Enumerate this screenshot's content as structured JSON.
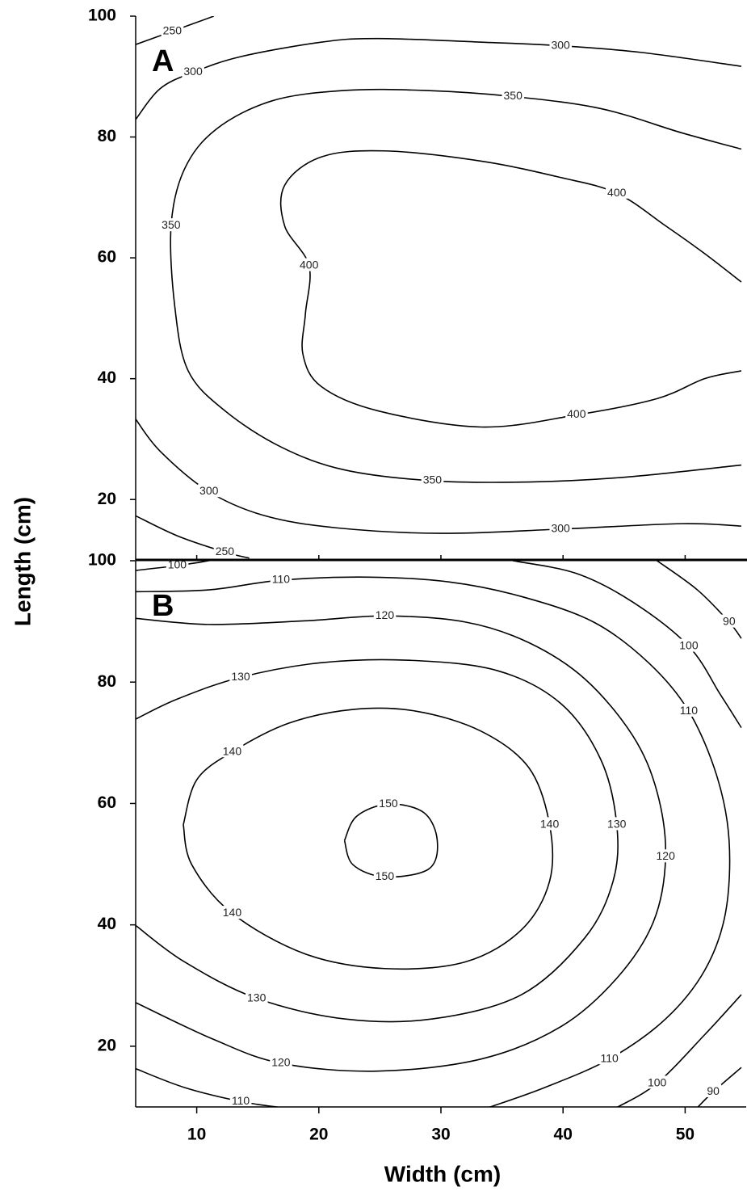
{
  "chart_data": [
    {
      "type": "contour",
      "label": "A",
      "ylabel": "Length (cm)",
      "xlim": [
        5,
        55
      ],
      "ylim": [
        10,
        100
      ],
      "yticks": [
        20,
        40,
        60,
        80,
        100
      ],
      "contours": [
        {
          "level": 250,
          "x": [
            5,
            8,
            11.4
          ],
          "y": [
            95.3,
            97.5,
            100
          ]
        },
        {
          "level": 300,
          "x": [
            5,
            7.0,
            9.7,
            13.6,
            20.2,
            24.8,
            33.3,
            39.8,
            46.4,
            54.6
          ],
          "y": [
            82.9,
            88,
            90.7,
            93.3,
            95.7,
            96.3,
            95.7,
            95.1,
            94,
            91.7
          ]
        },
        {
          "level": 350,
          "x": [
            54.6,
            49.7,
            43.1,
            35.9,
            28.7,
            22.1,
            16.2,
            11.6,
            9,
            7.9,
            8.2,
            9.3,
            12.3,
            16.9,
            22.1,
            29.3,
            37.2,
            45.1,
            54.6
          ],
          "y": [
            78,
            80.7,
            84.7,
            86.7,
            87.7,
            87.7,
            86,
            81.3,
            74.7,
            65.3,
            52,
            41.3,
            34.7,
            28.7,
            24.9,
            23.1,
            22.9,
            23.7,
            25.7
          ]
        },
        {
          "level": 400,
          "x": [
            54.6,
            51.6,
            48.4,
            44.4,
            39.8,
            33.3,
            25.4,
            20.2,
            17.2,
            17.2,
            19.2,
            18.9,
            18.7,
            20.2,
            24.8,
            33.3,
            41.1,
            47.7,
            51.6,
            54.6
          ],
          "y": [
            56,
            60.7,
            65.3,
            70.7,
            73.3,
            76,
            77.7,
            76.7,
            72,
            65.3,
            58.7,
            50.7,
            44,
            38.7,
            34.7,
            32,
            34,
            36.7,
            40,
            41.3
          ]
        },
        {
          "level": 300,
          "x": [
            5,
            7,
            11,
            15.6,
            21.5,
            30,
            39.8,
            49.7,
            54.6
          ],
          "y": [
            33.3,
            28,
            21.3,
            17.3,
            15.3,
            14.4,
            15.1,
            16,
            15.6
          ]
        },
        {
          "level": 250,
          "x": [
            5,
            8.4,
            12.3,
            14.3
          ],
          "y": [
            17.3,
            14,
            11.3,
            10.3
          ]
        }
      ]
    },
    {
      "type": "contour",
      "label": "B",
      "xlabel": "Width (cm)",
      "xlim": [
        5,
        55
      ],
      "ylim": [
        10,
        100
      ],
      "xticks": [
        10,
        20,
        30,
        40,
        50
      ],
      "yticks": [
        20,
        40,
        60,
        80,
        100
      ],
      "contours": [
        {
          "level": 100,
          "x": [
            5,
            8.4,
            11
          ],
          "y": [
            98.4,
            99.2,
            100
          ]
        },
        {
          "level": 100,
          "x": [
            35.9,
            41.1,
            45.7,
            50.3,
            52.9,
            54.6
          ],
          "y": [
            100,
            97.9,
            93.2,
            85.9,
            77.9,
            72.5
          ]
        },
        {
          "level": 100,
          "x": [
            54.6,
            51.6,
            47.7,
            44.4
          ],
          "y": [
            28.5,
            21.9,
            13.9,
            9.9
          ]
        },
        {
          "level": 90,
          "x": [
            47.7,
            51,
            53.6,
            54.6
          ],
          "y": [
            100,
            95.2,
            89.9,
            87.2
          ]
        },
        {
          "level": 90,
          "x": [
            54.6,
            52.3,
            51
          ],
          "y": [
            16.5,
            12.5,
            9.9
          ]
        },
        {
          "level": 110,
          "x": [
            5,
            11,
            16.9,
            24.1,
            30.7,
            36.6,
            42.5,
            47,
            50.3,
            52.6,
            53.6,
            53.3,
            51.6,
            48.4,
            43.8,
            38.5,
            33.9
          ],
          "y": [
            94.9,
            95.2,
            96.8,
            97.3,
            96.5,
            94.1,
            89.9,
            83.2,
            75.2,
            64.5,
            53.9,
            41.9,
            32.5,
            24.5,
            17.9,
            13.2,
            9.9
          ]
        },
        {
          "level": 110,
          "x": [
            5,
            9,
            13.6,
            16.9
          ],
          "y": [
            16.3,
            13.2,
            10.9,
            9.9
          ]
        },
        {
          "level": 120,
          "x": [
            5,
            11,
            18.9,
            25.4,
            32,
            37.2,
            41.8,
            45.7,
            47.7,
            48.4,
            47.4,
            44.4,
            39.8,
            33.3,
            24.8,
            16.9,
            11.3,
            5
          ],
          "y": [
            90.5,
            89.5,
            90.1,
            90.9,
            89.9,
            86.5,
            80.5,
            71.2,
            61.9,
            51.2,
            40.5,
            31.2,
            23.2,
            17.9,
            15.9,
            17.2,
            21.2,
            27.2
          ]
        },
        {
          "level": 130,
          "x": [
            5,
            8.4,
            13.6,
            20.2,
            27.4,
            34.6,
            39.8,
            43.1,
            44.4,
            44.1,
            41.8,
            36.6,
            29.3,
            22.1,
            14.9,
            9,
            5
          ],
          "y": [
            73.9,
            77.2,
            80.8,
            83.2,
            83.6,
            81.9,
            76.5,
            67.2,
            56.5,
            47.2,
            37.9,
            28.5,
            24.5,
            24.5,
            27.9,
            33.9,
            39.9
          ]
        },
        {
          "level": 140,
          "x": [
            8.9,
            10,
            12.9,
            17.5,
            22.8,
            28,
            33.3,
            37.2,
            38.9,
            38.9,
            36.6,
            32,
            25.4,
            18.9,
            12.9,
            9.6,
            8.9
          ],
          "y": [
            56.5,
            63.9,
            68.5,
            73.2,
            75.5,
            75.2,
            71.9,
            65.9,
            56.5,
            47.2,
            39.2,
            33.9,
            32.8,
            35.2,
            41.9,
            49.9,
            56.5
          ]
        },
        {
          "level": 150,
          "x": [
            22.1,
            23.1,
            25.7,
            28.6,
            29.7,
            29,
            25.4,
            22.8,
            22.1
          ],
          "y": [
            53.9,
            57.9,
            59.9,
            58.5,
            53.9,
            49.2,
            47.9,
            49.9,
            53.9
          ]
        }
      ]
    }
  ]
}
